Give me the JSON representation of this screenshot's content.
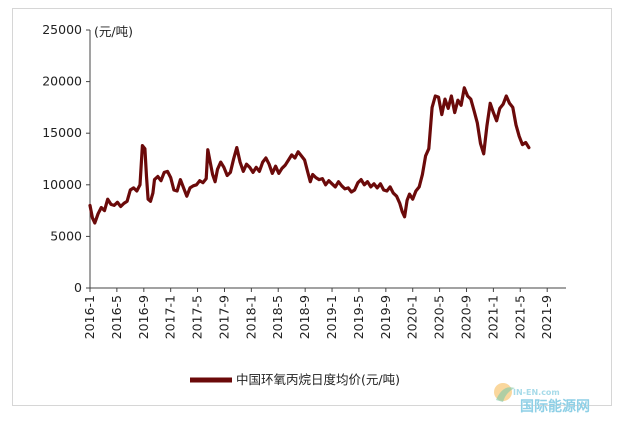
{
  "chart_data": {
    "type": "line",
    "ylabel": "(元/吨)",
    "ylim": [
      0,
      25000
    ],
    "yticks": [
      0,
      5000,
      10000,
      15000,
      20000,
      25000
    ],
    "ytick_labels": [
      "0",
      "5000",
      "10000",
      "15000",
      "20000",
      "25000"
    ],
    "xlim": [
      2016.0,
      2021.9
    ],
    "xticks": [
      2016.0,
      2016.333,
      2016.667,
      2017.0,
      2017.333,
      2017.667,
      2018.0,
      2018.333,
      2018.667,
      2019.0,
      2019.333,
      2019.667,
      2020.0,
      2020.333,
      2020.667,
      2021.0,
      2021.333,
      2021.667
    ],
    "xtick_labels": [
      "2016-1",
      "2016-5",
      "2016-9",
      "2017-1",
      "2017-5",
      "2017-9",
      "2018-1",
      "2018-5",
      "2018-9",
      "2019-1",
      "2019-5",
      "2019-9",
      "2020-1",
      "2020-5",
      "2020-9",
      "2021-1",
      "2021-5",
      "2021-9"
    ],
    "grid": false,
    "legend_position": "bottom",
    "series": [
      {
        "name": "中国环氧丙烷日度均价(元/吨)",
        "color": "#6b0a0a",
        "points": [
          [
            2016.0,
            8000
          ],
          [
            2016.03,
            6800
          ],
          [
            2016.06,
            6300
          ],
          [
            2016.1,
            7200
          ],
          [
            2016.14,
            7800
          ],
          [
            2016.18,
            7500
          ],
          [
            2016.22,
            8600
          ],
          [
            2016.26,
            8100
          ],
          [
            2016.3,
            8000
          ],
          [
            2016.34,
            8300
          ],
          [
            2016.38,
            7900
          ],
          [
            2016.42,
            8200
          ],
          [
            2016.46,
            8400
          ],
          [
            2016.5,
            9500
          ],
          [
            2016.54,
            9700
          ],
          [
            2016.58,
            9400
          ],
          [
            2016.62,
            10000
          ],
          [
            2016.65,
            13800
          ],
          [
            2016.68,
            13500
          ],
          [
            2016.7,
            10800
          ],
          [
            2016.72,
            8600
          ],
          [
            2016.75,
            8400
          ],
          [
            2016.78,
            9200
          ],
          [
            2016.8,
            10500
          ],
          [
            2016.84,
            10800
          ],
          [
            2016.88,
            10400
          ],
          [
            2016.92,
            11200
          ],
          [
            2016.96,
            11300
          ],
          [
            2017.0,
            10700
          ],
          [
            2017.04,
            9500
          ],
          [
            2017.08,
            9400
          ],
          [
            2017.12,
            10500
          ],
          [
            2017.16,
            9700
          ],
          [
            2017.2,
            8900
          ],
          [
            2017.24,
            9700
          ],
          [
            2017.28,
            9900
          ],
          [
            2017.32,
            10000
          ],
          [
            2017.36,
            10400
          ],
          [
            2017.4,
            10200
          ],
          [
            2017.44,
            10600
          ],
          [
            2017.46,
            13400
          ],
          [
            2017.48,
            12600
          ],
          [
            2017.52,
            11000
          ],
          [
            2017.55,
            10300
          ],
          [
            2017.58,
            11500
          ],
          [
            2017.62,
            12200
          ],
          [
            2017.66,
            11700
          ],
          [
            2017.7,
            10900
          ],
          [
            2017.74,
            11200
          ],
          [
            2017.78,
            12500
          ],
          [
            2017.82,
            13600
          ],
          [
            2017.86,
            12200
          ],
          [
            2017.9,
            11300
          ],
          [
            2017.94,
            12000
          ],
          [
            2017.98,
            11700
          ],
          [
            2018.02,
            11200
          ],
          [
            2018.06,
            11700
          ],
          [
            2018.1,
            11300
          ],
          [
            2018.14,
            12200
          ],
          [
            2018.18,
            12600
          ],
          [
            2018.22,
            12000
          ],
          [
            2018.26,
            11100
          ],
          [
            2018.3,
            11800
          ],
          [
            2018.34,
            11100
          ],
          [
            2018.38,
            11600
          ],
          [
            2018.42,
            11900
          ],
          [
            2018.46,
            12400
          ],
          [
            2018.5,
            12900
          ],
          [
            2018.54,
            12600
          ],
          [
            2018.58,
            13200
          ],
          [
            2018.62,
            12800
          ],
          [
            2018.66,
            12400
          ],
          [
            2018.7,
            11200
          ],
          [
            2018.73,
            10300
          ],
          [
            2018.76,
            11000
          ],
          [
            2018.8,
            10700
          ],
          [
            2018.84,
            10500
          ],
          [
            2018.88,
            10600
          ],
          [
            2018.92,
            10000
          ],
          [
            2018.96,
            10400
          ],
          [
            2019.0,
            10100
          ],
          [
            2019.04,
            9800
          ],
          [
            2019.08,
            10300
          ],
          [
            2019.12,
            9900
          ],
          [
            2019.16,
            9600
          ],
          [
            2019.2,
            9700
          ],
          [
            2019.24,
            9300
          ],
          [
            2019.28,
            9500
          ],
          [
            2019.32,
            10200
          ],
          [
            2019.36,
            10500
          ],
          [
            2019.4,
            10000
          ],
          [
            2019.44,
            10300
          ],
          [
            2019.48,
            9800
          ],
          [
            2019.52,
            10100
          ],
          [
            2019.56,
            9700
          ],
          [
            2019.6,
            10100
          ],
          [
            2019.64,
            9500
          ],
          [
            2019.68,
            9400
          ],
          [
            2019.72,
            9800
          ],
          [
            2019.76,
            9200
          ],
          [
            2019.8,
            8900
          ],
          [
            2019.84,
            8200
          ],
          [
            2019.87,
            7400
          ],
          [
            2019.9,
            6900
          ],
          [
            2019.93,
            8500
          ],
          [
            2019.96,
            9100
          ],
          [
            2020.0,
            8600
          ],
          [
            2020.04,
            9400
          ],
          [
            2020.08,
            9800
          ],
          [
            2020.12,
            11000
          ],
          [
            2020.16,
            12800
          ],
          [
            2020.2,
            13500
          ],
          [
            2020.24,
            17500
          ],
          [
            2020.28,
            18600
          ],
          [
            2020.32,
            18500
          ],
          [
            2020.36,
            16800
          ],
          [
            2020.4,
            18300
          ],
          [
            2020.44,
            17400
          ],
          [
            2020.48,
            18600
          ],
          [
            2020.52,
            17000
          ],
          [
            2020.56,
            18200
          ],
          [
            2020.6,
            17700
          ],
          [
            2020.64,
            19400
          ],
          [
            2020.68,
            18600
          ],
          [
            2020.72,
            18300
          ],
          [
            2020.76,
            17200
          ],
          [
            2020.8,
            16000
          ],
          [
            2020.84,
            14000
          ],
          [
            2020.88,
            13000
          ],
          [
            2020.92,
            15700
          ],
          [
            2020.96,
            17900
          ],
          [
            2021.0,
            17000
          ],
          [
            2021.04,
            16200
          ],
          [
            2021.08,
            17400
          ],
          [
            2021.12,
            17800
          ],
          [
            2021.16,
            18600
          ],
          [
            2021.2,
            17900
          ],
          [
            2021.24,
            17500
          ],
          [
            2021.28,
            15800
          ],
          [
            2021.32,
            14700
          ],
          [
            2021.36,
            13900
          ],
          [
            2021.4,
            14100
          ],
          [
            2021.44,
            13600
          ]
        ]
      }
    ]
  },
  "watermark": {
    "top_text": "IN-EN.com",
    "bottom_text": "国际能源网"
  }
}
